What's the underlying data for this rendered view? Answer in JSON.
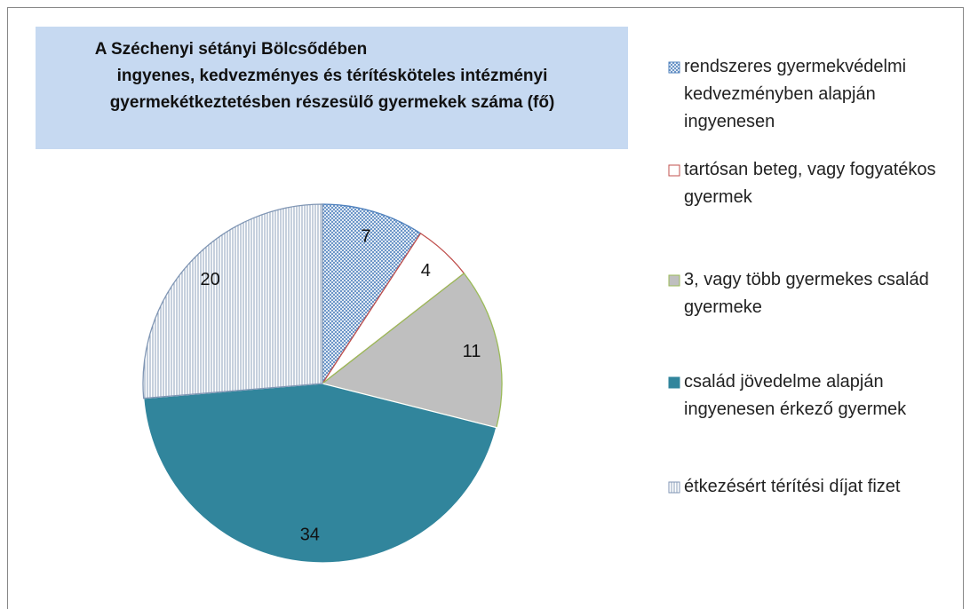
{
  "chart_data": {
    "type": "pie",
    "title": [
      "A Széchenyi sétányi Bölcsődében",
      "ingyenes, kedvezményes és térítésköteles intézményi",
      "gyermekétkeztetésben részesülő gyermekek száma (fő)"
    ],
    "categories": [
      "rendszeres gyermekvédelmi kedvezményben alapján ingyenesen",
      "tartósan beteg, vagy fogyatékos gyermek",
      "3, vagy több gyermekes család gyermeke",
      "család jövedelme alapján ingyenesen érkező gyermek",
      "étkezésért térítési díjat fizet"
    ],
    "values": [
      7,
      4,
      11,
      34,
      20
    ],
    "colors": [
      "#4f81bd",
      "#c0504d",
      "#9bbb59",
      "#31859c",
      "#8096b4"
    ],
    "patterns": [
      "dots",
      "solid-white",
      "solid-gray",
      "solid",
      "vertical"
    ],
    "legend": "right"
  }
}
